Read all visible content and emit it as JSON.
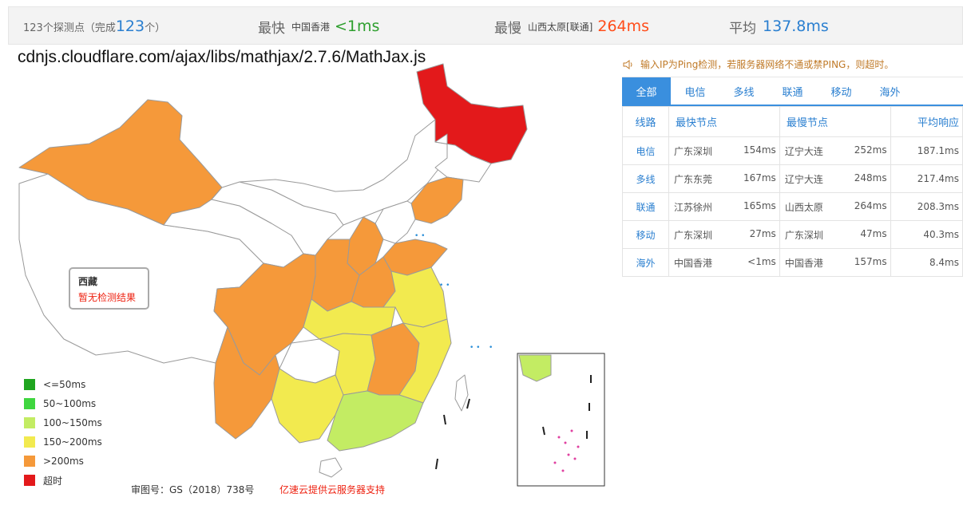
{
  "summary": {
    "count_prefix": "123个探测点（完成",
    "count_value": "123",
    "count_suffix": "个）",
    "fastest_label": "最快",
    "fastest_place": "中国香港",
    "fastest_value": "<1ms",
    "slowest_label": "最慢",
    "slowest_place": "山西太原[联通]",
    "slowest_value": "264ms",
    "average_label": "平均",
    "average_value": "137.8ms"
  },
  "map": {
    "title": "cdnjs.cloudflare.com/ajax/libs/mathjax/2.7.6/MathJax.js",
    "tooltip": {
      "title": "西藏",
      "message": "暂无检测结果"
    },
    "colors": {
      "le50": "#1fa51f",
      "50_100": "#3fd63f",
      "100_150": "#c3ec63",
      "150_200": "#f2ea4f",
      "gt200": "#f5993a",
      "timeout": "#e3191b",
      "no_data": "#ffffff"
    }
  },
  "legend": [
    {
      "label": "<=50ms",
      "color": "#1fa51f"
    },
    {
      "label": "50~100ms",
      "color": "#3fd63f"
    },
    {
      "label": "100~150ms",
      "color": "#c3ec63"
    },
    {
      "label": "150~200ms",
      "color": "#f2ea4f"
    },
    {
      "label": ">200ms",
      "color": "#f5993a"
    },
    {
      "label": "超时",
      "color": "#e3191b"
    }
  ],
  "footer": {
    "map_number": "审图号：GS（2018）738号",
    "sponsor": "亿速云提供云服务器支持"
  },
  "notice": "输入IP为Ping检测，若服务器网络不通或禁PING，则超时。",
  "tabs": [
    "全部",
    "电信",
    "多线",
    "联通",
    "移动",
    "海外"
  ],
  "table": {
    "headers": {
      "line": "线路",
      "fastest": "最快节点",
      "slowest": "最慢节点",
      "average": "平均响应"
    },
    "rows": [
      {
        "line": "电信",
        "fast_node": "广东深圳",
        "fast_ms": "154ms",
        "slow_node": "辽宁大连",
        "slow_ms": "252ms",
        "avg": "187.1ms"
      },
      {
        "line": "多线",
        "fast_node": "广东东莞",
        "fast_ms": "167ms",
        "slow_node": "辽宁大连",
        "slow_ms": "248ms",
        "avg": "217.4ms"
      },
      {
        "line": "联通",
        "fast_node": "江苏徐州",
        "fast_ms": "165ms",
        "slow_node": "山西太原",
        "slow_ms": "264ms",
        "avg": "208.3ms"
      },
      {
        "line": "移动",
        "fast_node": "广东深圳",
        "fast_ms": "27ms",
        "slow_node": "广东深圳",
        "slow_ms": "47ms",
        "avg": "40.3ms"
      },
      {
        "line": "海外",
        "fast_node": "中国香港",
        "fast_ms": "<1ms",
        "slow_node": "中国香港",
        "slow_ms": "157ms",
        "avg": "8.4ms"
      }
    ]
  }
}
